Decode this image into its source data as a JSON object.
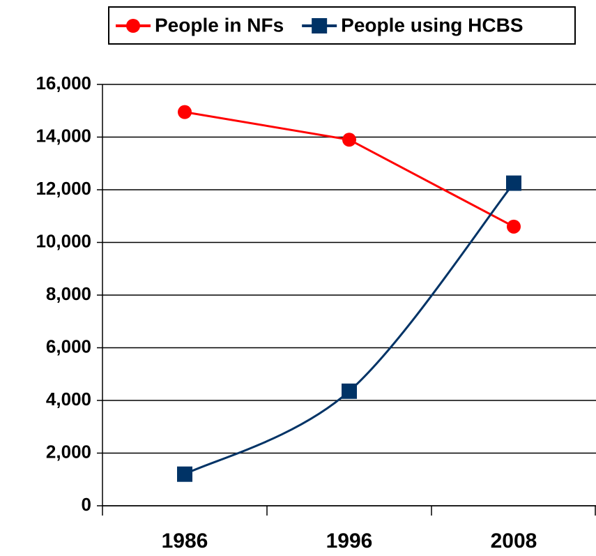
{
  "chart_data": {
    "type": "line",
    "categories": [
      "1986",
      "1996",
      "2008"
    ],
    "series": [
      {
        "name": "People in NFs",
        "color": "#ff0000",
        "marker": "circle",
        "values": [
          14950,
          13900,
          10600
        ]
      },
      {
        "name": "People using HCBS",
        "color": "#003366",
        "marker": "square",
        "smooth": true,
        "values": [
          1200,
          4350,
          12250
        ]
      }
    ],
    "ylim": [
      0,
      16000
    ],
    "yticks": [
      0,
      {
        "value": 2000,
        "label": "2,000"
      },
      {
        "value": 4000,
        "label": "4,000"
      },
      {
        "value": 6000,
        "label": "6,000"
      },
      {
        "value": 8000,
        "label": "8,000"
      },
      {
        "value": 10000,
        "label": "10,000"
      },
      {
        "value": 12000,
        "label": "12,000"
      },
      {
        "value": 14000,
        "label": "14,000"
      },
      {
        "value": 16000,
        "label": "16,000"
      }
    ],
    "grid": true,
    "legend": "top"
  }
}
